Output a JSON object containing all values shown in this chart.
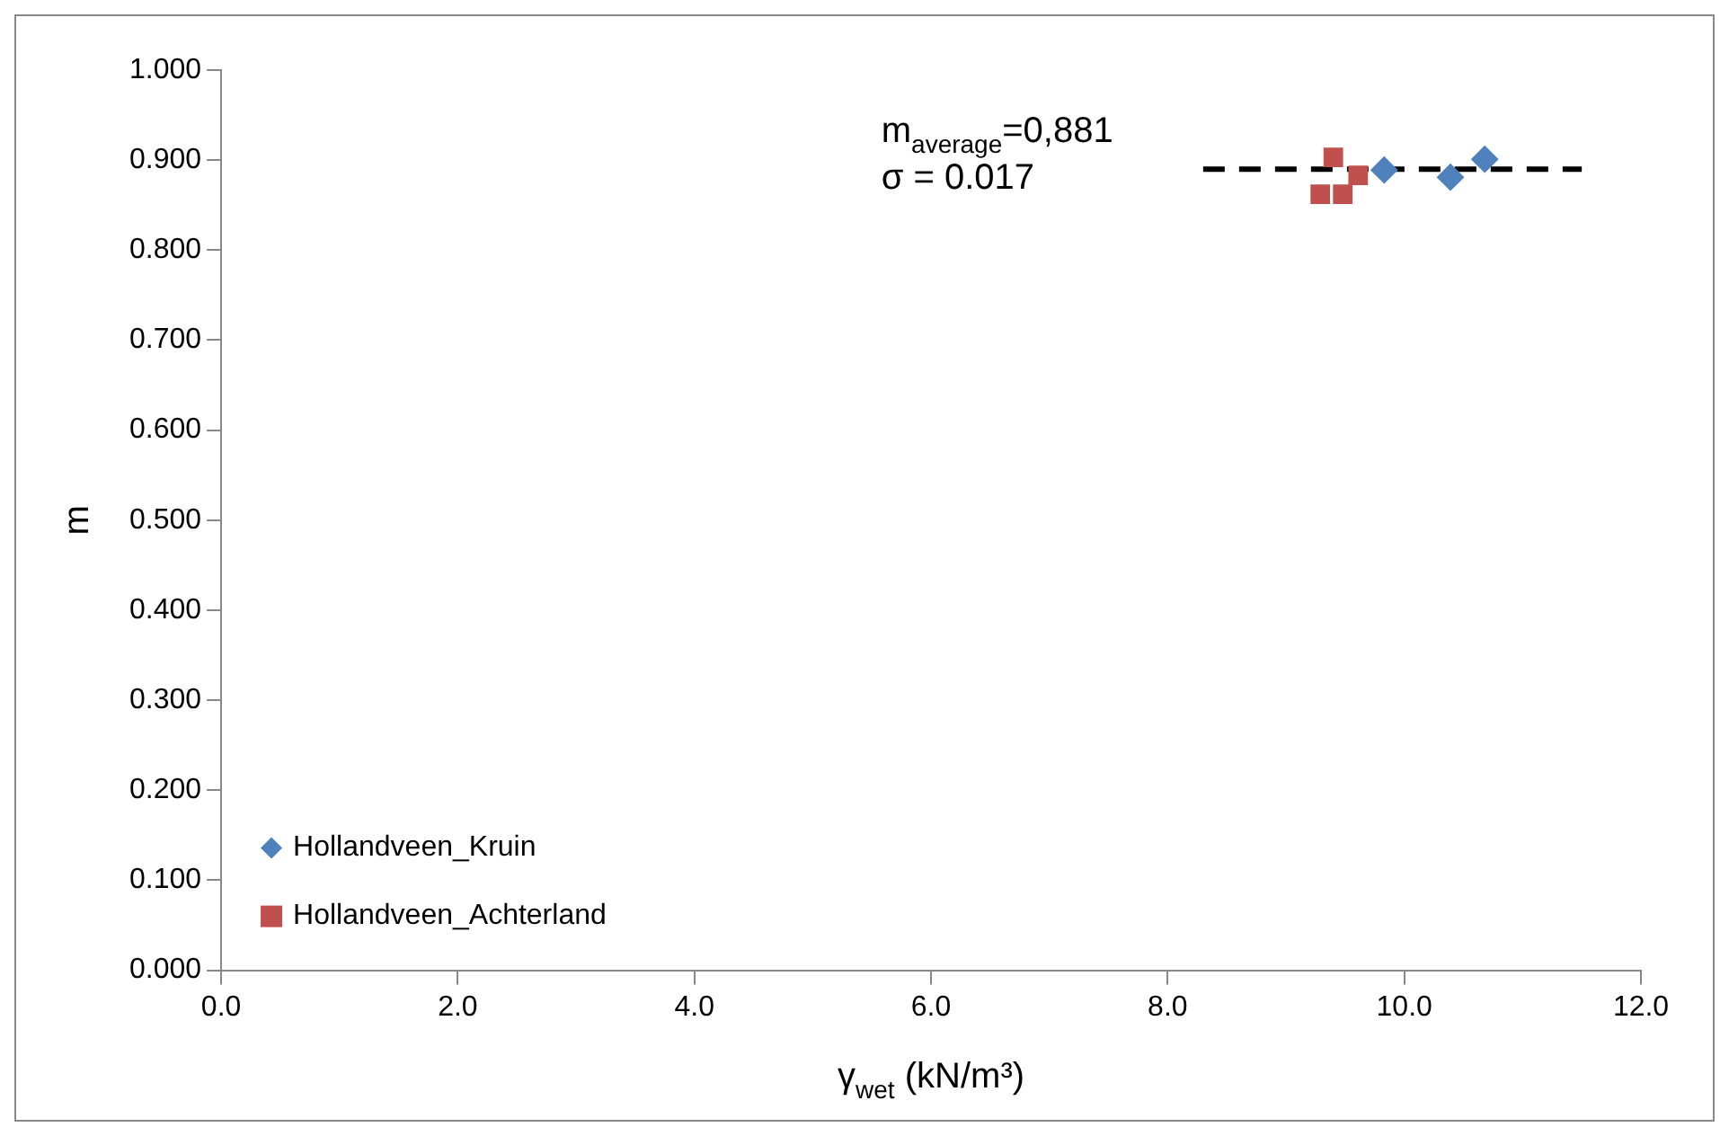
{
  "chart_data": {
    "type": "scatter",
    "xlabel": "γ$_{wet}$ (kN/m³)",
    "ylabel": "m",
    "xlim": [
      0,
      12
    ],
    "xticks": [
      {
        "value": 0,
        "label": "0.0"
      },
      {
        "value": 2,
        "label": "2.0"
      },
      {
        "value": 4,
        "label": "4.0"
      },
      {
        "value": 6,
        "label": "6.0"
      },
      {
        "value": 8,
        "label": "8.0"
      },
      {
        "value": 10,
        "label": "10.0"
      },
      {
        "value": 12,
        "label": "12.0"
      }
    ],
    "ylim": [
      0,
      1
    ],
    "yticks": [
      {
        "value": 0,
        "label": "0.000"
      },
      {
        "value": 0.1,
        "label": "0.100"
      },
      {
        "value": 0.2,
        "label": "0.200"
      },
      {
        "value": 0.3,
        "label": "0.300"
      },
      {
        "value": 0.4,
        "label": "0.400"
      },
      {
        "value": 0.5,
        "label": "0.500"
      },
      {
        "value": 0.6,
        "label": "0.600"
      },
      {
        "value": 0.7,
        "label": "0.700"
      },
      {
        "value": 0.8,
        "label": "0.800"
      },
      {
        "value": 0.9,
        "label": "0.900"
      },
      {
        "value": 1,
        "label": "1.000"
      }
    ],
    "grid": false,
    "legend": "bottom left",
    "annotations": [
      "m$_{average}$=0,881",
      "σ = 0.017"
    ],
    "series": [
      {
        "name": "Hollandveen_Kruin",
        "color": "#4f81bd",
        "marker": "diamond",
        "x": [
          9.83,
          10.39,
          10.68
        ],
        "values": [
          0.889,
          0.881,
          0.901
        ]
      },
      {
        "name": "Hollandveen_Achterland",
        "color": "#c0504d",
        "marker": "square",
        "x": [
          9.4,
          9.61,
          9.29,
          9.48
        ],
        "values": [
          0.903,
          0.883,
          0.862,
          0.862
        ]
      },
      {
        "type": "line",
        "color": "#000000",
        "line_style": "dashed",
        "marker": "none",
        "x": [
          8.3,
          11.5
        ],
        "values": [
          0.89,
          0.89
        ]
      }
    ]
  }
}
